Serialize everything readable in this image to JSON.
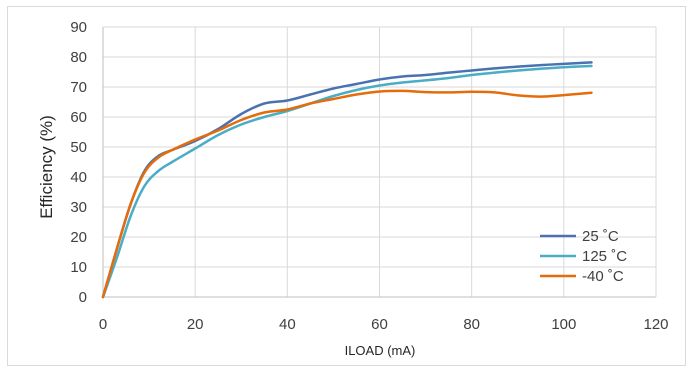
{
  "chart_data": {
    "type": "line",
    "title": "",
    "xlabel": "ILOAD (mA)",
    "ylabel": "Efficiency (%)",
    "xlim": [
      0,
      120
    ],
    "ylim": [
      0,
      90
    ],
    "xticks": [
      0,
      20,
      40,
      60,
      80,
      100,
      120
    ],
    "yticks": [
      0,
      10,
      20,
      30,
      40,
      50,
      60,
      70,
      80,
      90
    ],
    "grid": true,
    "legend_position": "bottom-right",
    "series": [
      {
        "name": "25 ˚C",
        "color": "#4a72b0",
        "x": [
          0,
          3,
          6,
          9,
          12,
          15,
          20,
          25,
          30,
          35,
          40,
          45,
          50,
          55,
          60,
          65,
          70,
          75,
          80,
          85,
          90,
          95,
          100,
          106
        ],
        "y": [
          0,
          16,
          31,
          42,
          47,
          49,
          52,
          56,
          61,
          64.5,
          65.5,
          67.5,
          69.5,
          71,
          72.5,
          73.5,
          74,
          74.8,
          75.5,
          76.2,
          76.8,
          77.3,
          77.7,
          78.2
        ]
      },
      {
        "name": "125 ˚C",
        "color": "#4bacc6",
        "x": [
          0,
          3,
          6,
          9,
          12,
          15,
          20,
          25,
          30,
          35,
          40,
          45,
          50,
          55,
          60,
          65,
          70,
          75,
          80,
          85,
          90,
          95,
          100,
          106
        ],
        "y": [
          0,
          13,
          27,
          37,
          42,
          45,
          49.5,
          54,
          57.5,
          60,
          62,
          64.5,
          67,
          69,
          70.5,
          71.5,
          72.2,
          73,
          74,
          74.8,
          75.5,
          76.1,
          76.6,
          77
        ]
      },
      {
        "name": "-40 ˚C",
        "color": "#e46c0a",
        "x": [
          0,
          3,
          6,
          9,
          12,
          15,
          20,
          25,
          30,
          35,
          40,
          45,
          50,
          55,
          60,
          65,
          70,
          75,
          80,
          85,
          90,
          95,
          100,
          106
        ],
        "y": [
          0,
          16,
          31,
          41.5,
          46.5,
          49,
          52.5,
          55.5,
          59,
          61.5,
          62.5,
          64.5,
          66,
          67.5,
          68.5,
          68.7,
          68.3,
          68.2,
          68.4,
          68.2,
          67.2,
          66.8,
          67.3,
          68.1
        ]
      }
    ]
  }
}
